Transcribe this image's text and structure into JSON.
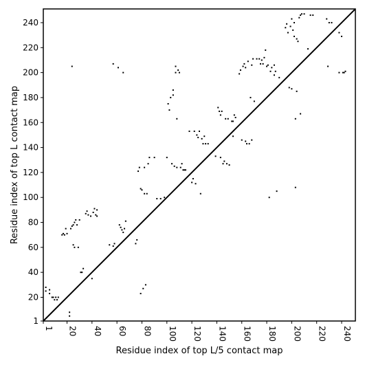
{
  "chart_data": {
    "type": "scatter",
    "title": "",
    "xlabel": "Residue index of top L/5 contact map",
    "ylabel": "Residue index of top L contact map",
    "xlim": [
      1,
      251
    ],
    "ylim": [
      1,
      251
    ],
    "x_ticks": [
      1,
      20,
      40,
      60,
      80,
      100,
      120,
      140,
      160,
      180,
      200,
      220,
      240
    ],
    "y_ticks": [
      1,
      20,
      40,
      60,
      80,
      100,
      120,
      140,
      160,
      180,
      200,
      220,
      240
    ],
    "x_tick_rotation": -90,
    "grid": false,
    "legend": "none",
    "colors": {
      "points": "#000000",
      "diagonal": "#000000",
      "axes": "#000000"
    },
    "diagonal_line": {
      "from": [
        1,
        1
      ],
      "to": [
        251,
        251
      ]
    },
    "series": [
      {
        "points": [
          [
            3,
            25
          ],
          [
            3,
            28
          ],
          [
            6,
            23
          ],
          [
            6,
            26
          ],
          [
            8,
            20
          ],
          [
            9,
            20
          ],
          [
            10,
            18
          ],
          [
            11,
            20
          ],
          [
            12,
            18
          ],
          [
            13,
            20
          ],
          [
            16,
            70
          ],
          [
            17,
            71
          ],
          [
            18,
            70
          ],
          [
            19,
            75
          ],
          [
            20,
            71
          ],
          [
            22,
            5
          ],
          [
            22,
            8
          ],
          [
            23,
            75
          ],
          [
            24,
            77
          ],
          [
            25,
            78
          ],
          [
            25,
            62
          ],
          [
            26,
            60
          ],
          [
            26,
            80
          ],
          [
            27,
            82
          ],
          [
            28,
            78
          ],
          [
            29,
            60
          ],
          [
            30,
            82
          ],
          [
            32,
            40
          ],
          [
            33,
            43
          ],
          [
            35,
            87
          ],
          [
            39,
            85
          ],
          [
            40,
            35
          ],
          [
            41,
            88
          ],
          [
            44,
            90
          ],
          [
            57,
            61
          ],
          [
            62,
            78
          ],
          [
            63,
            76
          ],
          [
            64,
            74
          ],
          [
            65,
            72
          ],
          [
            66,
            75
          ],
          [
            75,
            63
          ],
          [
            76,
            66
          ],
          [
            77,
            121
          ],
          [
            78,
            124
          ],
          [
            79,
            23
          ],
          [
            80,
            106
          ],
          [
            81,
            27
          ],
          [
            82,
            124
          ],
          [
            83,
            30
          ],
          [
            84,
            103
          ],
          [
            85,
            127
          ],
          [
            86,
            132
          ],
          [
            90,
            132
          ],
          [
            92,
            99
          ],
          [
            100,
            132
          ],
          [
            101,
            175
          ],
          [
            102,
            170
          ],
          [
            103,
            180
          ],
          [
            104,
            127
          ],
          [
            105,
            182
          ],
          [
            105,
            186
          ],
          [
            106,
            125
          ],
          [
            107,
            200
          ],
          [
            107,
            205
          ],
          [
            108,
            163
          ],
          [
            108,
            124
          ],
          [
            109,
            202
          ],
          [
            110,
            200
          ],
          [
            111,
            124
          ],
          [
            112,
            127
          ],
          [
            113,
            122
          ],
          [
            114,
            122
          ],
          [
            115,
            122
          ],
          [
            118,
            153
          ],
          [
            120,
            112
          ],
          [
            121,
            115
          ],
          [
            122,
            153
          ],
          [
            123,
            111
          ],
          [
            124,
            150
          ],
          [
            125,
            148
          ],
          [
            126,
            153
          ],
          [
            127,
            103
          ],
          [
            128,
            147
          ],
          [
            129,
            143
          ],
          [
            130,
            149
          ],
          [
            131,
            143
          ],
          [
            133,
            143
          ],
          [
            139,
            133
          ],
          [
            141,
            172
          ],
          [
            142,
            169
          ],
          [
            143,
            166
          ],
          [
            143,
            132
          ],
          [
            144,
            169
          ],
          [
            145,
            127
          ],
          [
            146,
            129
          ],
          [
            147,
            163
          ],
          [
            148,
            127
          ],
          [
            149,
            163
          ],
          [
            150,
            126
          ],
          [
            153,
            161
          ],
          [
            153,
            149
          ],
          [
            154,
            166
          ],
          [
            158,
            199
          ],
          [
            159,
            202
          ],
          [
            160,
            146
          ],
          [
            161,
            205
          ],
          [
            162,
            207
          ],
          [
            163,
            204
          ],
          [
            163,
            145
          ],
          [
            164,
            143
          ],
          [
            165,
            209
          ],
          [
            166,
            143
          ],
          [
            167,
            180
          ],
          [
            168,
            206
          ],
          [
            168,
            146
          ],
          [
            169,
            211
          ],
          [
            170,
            177
          ],
          [
            172,
            211
          ],
          [
            174,
            211
          ],
          [
            175,
            207
          ],
          [
            176,
            210
          ],
          [
            177,
            207
          ],
          [
            178,
            212
          ],
          [
            179,
            218
          ],
          [
            180,
            205
          ],
          [
            181,
            206
          ],
          [
            182,
            100
          ],
          [
            183,
            201
          ],
          [
            184,
            204
          ],
          [
            186,
            206
          ],
          [
            186,
            198
          ],
          [
            187,
            201
          ],
          [
            188,
            105
          ],
          [
            190,
            196
          ],
          [
            195,
            236
          ],
          [
            196,
            239
          ],
          [
            197,
            232
          ],
          [
            198,
            188
          ],
          [
            199,
            237
          ],
          [
            200,
            187
          ],
          [
            200,
            243
          ],
          [
            201,
            234
          ],
          [
            202,
            229
          ],
          [
            202,
            240
          ],
          [
            203,
            163
          ],
          [
            203,
            108
          ],
          [
            204,
            227
          ],
          [
            204,
            185
          ],
          [
            205,
            225
          ],
          [
            206,
            244
          ],
          [
            207,
            167
          ],
          [
            207,
            246
          ],
          [
            208,
            247
          ],
          [
            210,
            247
          ],
          [
            213,
            219
          ],
          [
            215,
            246
          ],
          [
            217,
            246
          ],
          [
            228,
            243
          ],
          [
            229,
            205
          ],
          [
            230,
            240
          ],
          [
            232,
            240
          ],
          [
            238,
            200
          ],
          [
            238,
            232
          ],
          [
            240,
            229
          ],
          [
            241,
            200
          ],
          [
            242,
            200
          ],
          [
            243,
            201
          ],
          [
            57,
            207
          ],
          [
            61,
            204
          ],
          [
            65,
            200
          ],
          [
            24,
            205
          ],
          [
            31,
            40
          ],
          [
            36,
            89
          ],
          [
            37,
            86
          ],
          [
            42,
            91
          ],
          [
            43,
            86
          ],
          [
            44,
            85
          ],
          [
            54,
            62
          ],
          [
            58,
            63
          ],
          [
            67,
            81
          ],
          [
            79,
            107
          ],
          [
            82,
            103
          ],
          [
            95,
            99
          ],
          [
            98,
            100
          ],
          [
            152,
            161
          ],
          [
            155,
            164
          ]
        ]
      }
    ]
  }
}
